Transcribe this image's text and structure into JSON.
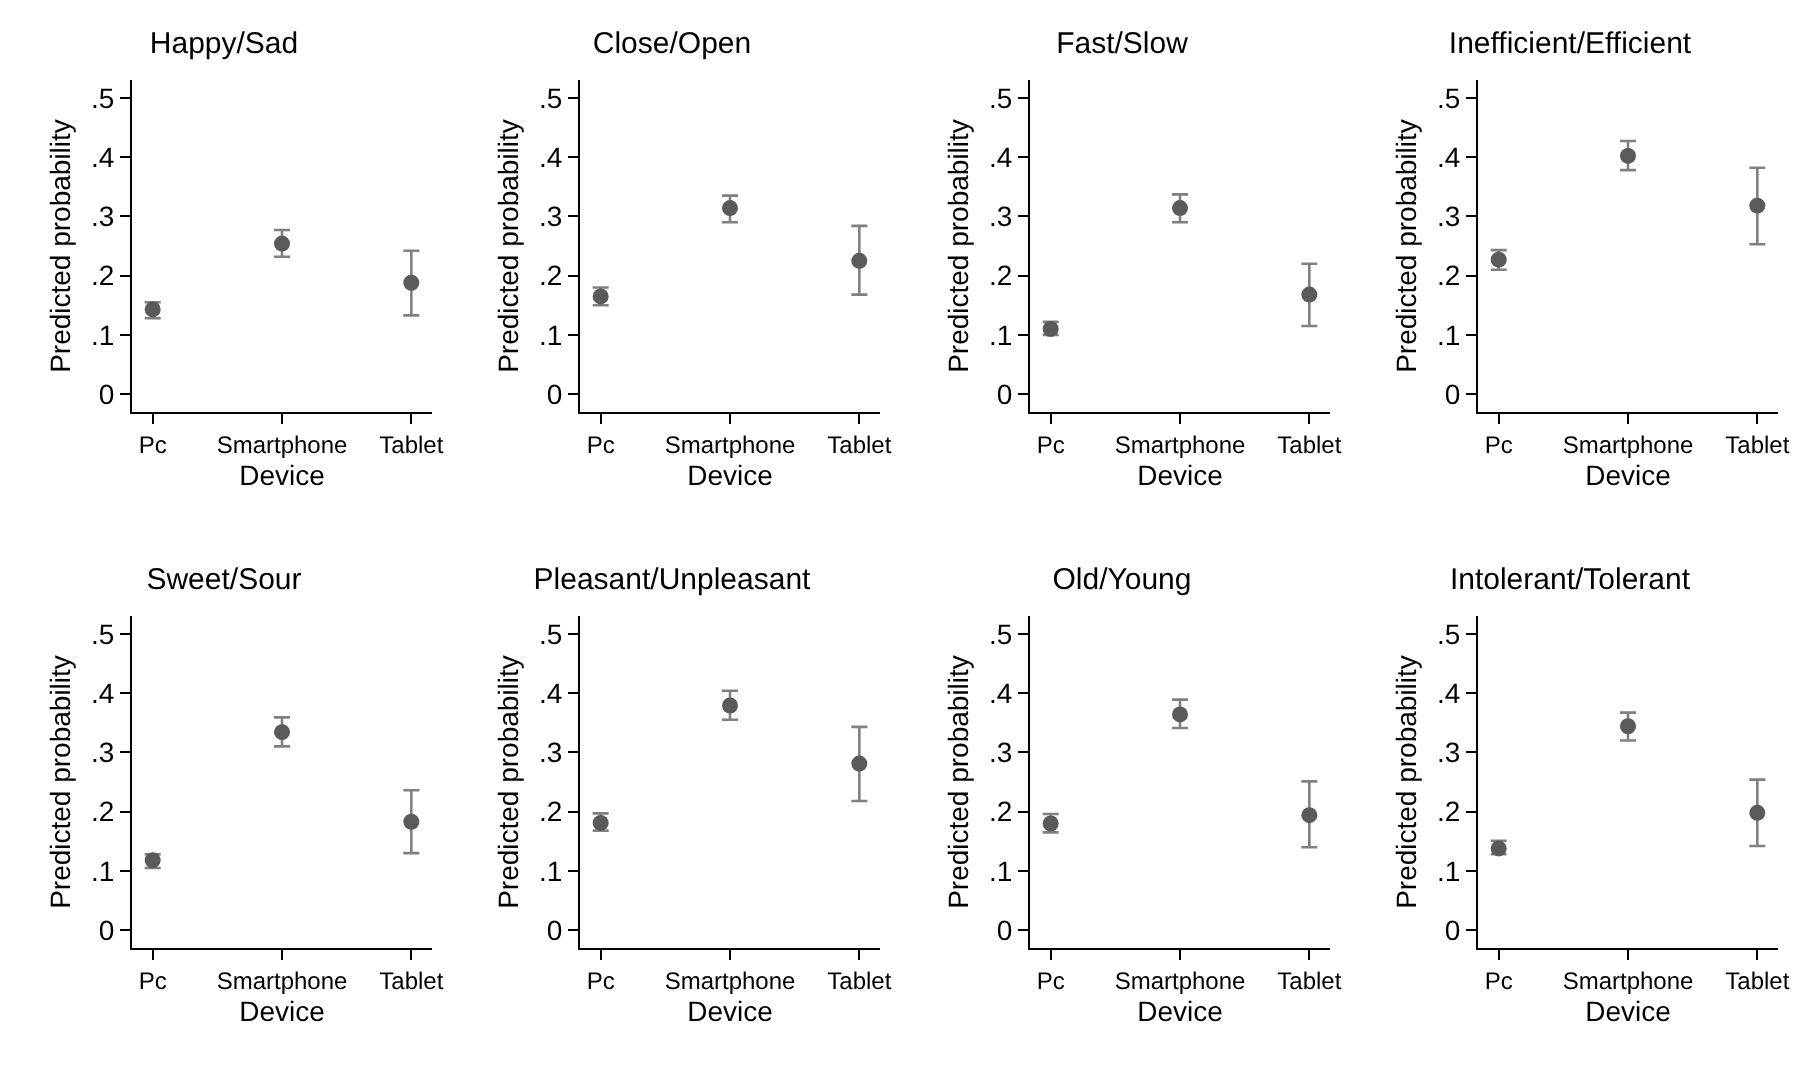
{
  "chart_data": [
    {
      "type": "scatter",
      "title": "Happy/Sad",
      "xlabel": "Device",
      "ylabel": "Predicted probability",
      "categories": [
        "Pc",
        "Smartphone",
        "Tablet"
      ],
      "values": [
        0.143,
        0.254,
        0.188
      ],
      "errors": [
        [
          0.128,
          0.155
        ],
        [
          0.232,
          0.277
        ],
        [
          0.133,
          0.242
        ]
      ],
      "color": "#5a5a5a",
      "marker": "circle",
      "grid": false,
      "ylim": [
        -0.03,
        0.53
      ],
      "yticks": [
        {
          "value": 0,
          "label": "0"
        },
        {
          "value": 0.1,
          "label": ".1"
        },
        {
          "value": 0.2,
          "label": ".2"
        },
        {
          "value": 0.3,
          "label": ".3"
        },
        {
          "value": 0.4,
          "label": ".4"
        },
        {
          "value": 0.5,
          "label": ".5"
        }
      ]
    },
    {
      "type": "scatter",
      "title": "Close/Open",
      "xlabel": "Device",
      "ylabel": "Predicted probability",
      "categories": [
        "Pc",
        "Smartphone",
        "Tablet"
      ],
      "values": [
        0.165,
        0.314,
        0.225
      ],
      "errors": [
        [
          0.15,
          0.18
        ],
        [
          0.29,
          0.335
        ],
        [
          0.168,
          0.284
        ]
      ],
      "color": "#5a5a5a",
      "marker": "circle",
      "grid": false,
      "ylim": [
        -0.03,
        0.53
      ],
      "yticks": [
        {
          "value": 0,
          "label": "0"
        },
        {
          "value": 0.1,
          "label": ".1"
        },
        {
          "value": 0.2,
          "label": ".2"
        },
        {
          "value": 0.3,
          "label": ".3"
        },
        {
          "value": 0.4,
          "label": ".4"
        },
        {
          "value": 0.5,
          "label": ".5"
        }
      ]
    },
    {
      "type": "scatter",
      "title": "Fast/Slow",
      "xlabel": "Device",
      "ylabel": "Predicted probability",
      "categories": [
        "Pc",
        "Smartphone",
        "Tablet"
      ],
      "values": [
        0.11,
        0.314,
        0.168
      ],
      "errors": [
        [
          0.1,
          0.122
        ],
        [
          0.29,
          0.337
        ],
        [
          0.115,
          0.22
        ]
      ],
      "color": "#5a5a5a",
      "marker": "circle",
      "grid": false,
      "ylim": [
        -0.03,
        0.53
      ],
      "yticks": [
        {
          "value": 0,
          "label": "0"
        },
        {
          "value": 0.1,
          "label": ".1"
        },
        {
          "value": 0.2,
          "label": ".2"
        },
        {
          "value": 0.3,
          "label": ".3"
        },
        {
          "value": 0.4,
          "label": ".4"
        },
        {
          "value": 0.5,
          "label": ".5"
        }
      ]
    },
    {
      "type": "scatter",
      "title": "Inefficient/Efficient",
      "xlabel": "Device",
      "ylabel": "Predicted probability",
      "categories": [
        "Pc",
        "Smartphone",
        "Tablet"
      ],
      "values": [
        0.227,
        0.402,
        0.318
      ],
      "errors": [
        [
          0.21,
          0.243
        ],
        [
          0.378,
          0.427
        ],
        [
          0.253,
          0.382
        ]
      ],
      "color": "#5a5a5a",
      "marker": "circle",
      "grid": false,
      "ylim": [
        -0.03,
        0.53
      ],
      "yticks": [
        {
          "value": 0,
          "label": "0"
        },
        {
          "value": 0.1,
          "label": ".1"
        },
        {
          "value": 0.2,
          "label": ".2"
        },
        {
          "value": 0.3,
          "label": ".3"
        },
        {
          "value": 0.4,
          "label": ".4"
        },
        {
          "value": 0.5,
          "label": ".5"
        }
      ]
    },
    {
      "type": "scatter",
      "title": "Sweet/Sour",
      "xlabel": "Device",
      "ylabel": "Predicted probability",
      "categories": [
        "Pc",
        "Smartphone",
        "Tablet"
      ],
      "values": [
        0.118,
        0.334,
        0.183
      ],
      "errors": [
        [
          0.105,
          0.128
        ],
        [
          0.31,
          0.359
        ],
        [
          0.13,
          0.236
        ]
      ],
      "color": "#5a5a5a",
      "marker": "circle",
      "grid": false,
      "ylim": [
        -0.03,
        0.53
      ],
      "yticks": [
        {
          "value": 0,
          "label": "0"
        },
        {
          "value": 0.1,
          "label": ".1"
        },
        {
          "value": 0.2,
          "label": ".2"
        },
        {
          "value": 0.3,
          "label": ".3"
        },
        {
          "value": 0.4,
          "label": ".4"
        },
        {
          "value": 0.5,
          "label": ".5"
        }
      ]
    },
    {
      "type": "scatter",
      "title": "Pleasant/Unpleasant",
      "xlabel": "Device",
      "ylabel": "Predicted probability",
      "categories": [
        "Pc",
        "Smartphone",
        "Tablet"
      ],
      "values": [
        0.181,
        0.379,
        0.281
      ],
      "errors": [
        [
          0.168,
          0.197
        ],
        [
          0.355,
          0.404
        ],
        [
          0.218,
          0.343
        ]
      ],
      "color": "#5a5a5a",
      "marker": "circle",
      "grid": false,
      "ylim": [
        -0.03,
        0.53
      ],
      "yticks": [
        {
          "value": 0,
          "label": "0"
        },
        {
          "value": 0.1,
          "label": ".1"
        },
        {
          "value": 0.2,
          "label": ".2"
        },
        {
          "value": 0.3,
          "label": ".3"
        },
        {
          "value": 0.4,
          "label": ".4"
        },
        {
          "value": 0.5,
          "label": ".5"
        }
      ]
    },
    {
      "type": "scatter",
      "title": "Old/Young",
      "xlabel": "Device",
      "ylabel": "Predicted probability",
      "categories": [
        "Pc",
        "Smartphone",
        "Tablet"
      ],
      "values": [
        0.18,
        0.364,
        0.194
      ],
      "errors": [
        [
          0.165,
          0.196
        ],
        [
          0.341,
          0.389
        ],
        [
          0.14,
          0.251
        ]
      ],
      "color": "#5a5a5a",
      "marker": "circle",
      "grid": false,
      "ylim": [
        -0.03,
        0.53
      ],
      "yticks": [
        {
          "value": 0,
          "label": "0"
        },
        {
          "value": 0.1,
          "label": ".1"
        },
        {
          "value": 0.2,
          "label": ".2"
        },
        {
          "value": 0.3,
          "label": ".3"
        },
        {
          "value": 0.4,
          "label": ".4"
        },
        {
          "value": 0.5,
          "label": ".5"
        }
      ]
    },
    {
      "type": "scatter",
      "title": "Intolerant/Tolerant",
      "xlabel": "Device",
      "ylabel": "Predicted probability",
      "categories": [
        "Pc",
        "Smartphone",
        "Tablet"
      ],
      "values": [
        0.138,
        0.344,
        0.198
      ],
      "errors": [
        [
          0.128,
          0.151
        ],
        [
          0.32,
          0.367
        ],
        [
          0.142,
          0.254
        ]
      ],
      "color": "#5a5a5a",
      "marker": "circle",
      "grid": false,
      "ylim": [
        -0.03,
        0.53
      ],
      "yticks": [
        {
          "value": 0,
          "label": "0"
        },
        {
          "value": 0.1,
          "label": ".1"
        },
        {
          "value": 0.2,
          "label": ".2"
        },
        {
          "value": 0.3,
          "label": ".3"
        },
        {
          "value": 0.4,
          "label": ".4"
        },
        {
          "value": 0.5,
          "label": ".5"
        }
      ]
    }
  ]
}
